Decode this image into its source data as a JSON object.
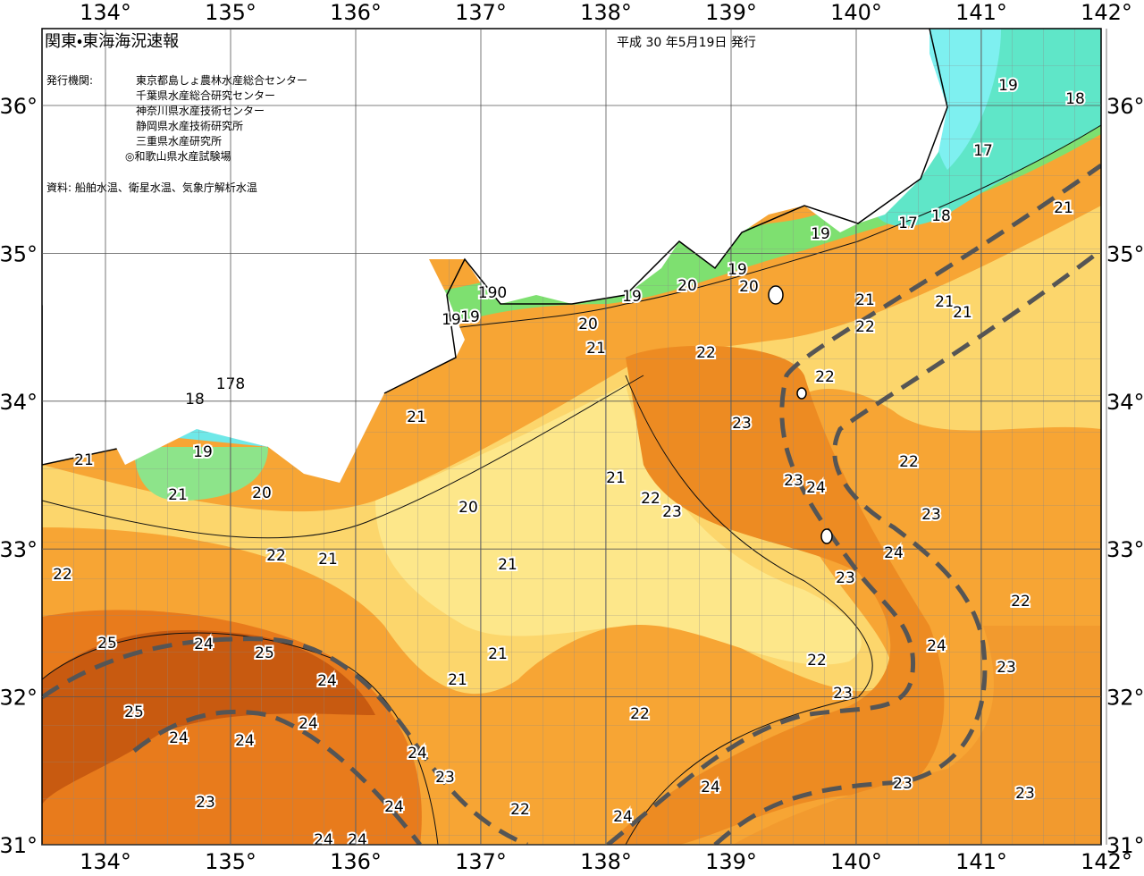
{
  "header": {
    "title": "関東・東海海況速報",
    "issued": "平成 30 年5月19日 発行",
    "issuer_label": "発行機関:",
    "issuers": [
      "東京都島しょ農林水産総合センター",
      "千葉県水産総合研究センター",
      "神奈川県水産技術センター",
      "静岡県水産技術研究所",
      "三重県水産研究所",
      "◎和歌山県水産試験場"
    ],
    "sources": "資料: 船舶水温、衛星水温、気象庁解析水温"
  },
  "map": {
    "xticks": [
      {
        "value": 134,
        "label": "134°"
      },
      {
        "value": 135,
        "label": "135°"
      },
      {
        "value": 136,
        "label": "136°"
      },
      {
        "value": 137,
        "label": "137°"
      },
      {
        "value": 138,
        "label": "138°"
      },
      {
        "value": 139,
        "label": "139°"
      },
      {
        "value": 140,
        "label": "140°"
      },
      {
        "value": 141,
        "label": "141°"
      },
      {
        "value": 142,
        "label": "142°"
      }
    ],
    "yticks": [
      {
        "value": 36,
        "label": "36°"
      },
      {
        "value": 35,
        "label": "35°"
      },
      {
        "value": 34,
        "label": "34°"
      },
      {
        "value": 33,
        "label": "33°"
      },
      {
        "value": 32,
        "label": "32°"
      },
      {
        "value": 31,
        "label": "31°"
      }
    ],
    "isotherm_labels": [
      "19",
      "18",
      "17",
      "18",
      "17",
      "21",
      "19",
      "19",
      "20",
      "20",
      "19",
      "190",
      "19",
      "19",
      "20",
      "21",
      "21",
      "22",
      "21",
      "21",
      "22",
      "22",
      "23",
      "21",
      "18",
      "178",
      "19",
      "21",
      "21",
      "20",
      "21",
      "20",
      "22",
      "23",
      "23",
      "24",
      "22",
      "23",
      "22",
      "21",
      "21",
      "24",
      "22",
      "23",
      "22",
      "25",
      "24",
      "25",
      "21",
      "24",
      "24",
      "21",
      "22",
      "23",
      "23",
      "25",
      "22",
      "24",
      "24",
      "24",
      "24",
      "23",
      "24",
      "23",
      "23",
      "23",
      "24",
      "22",
      "24",
      "24",
      "24"
    ]
  }
}
